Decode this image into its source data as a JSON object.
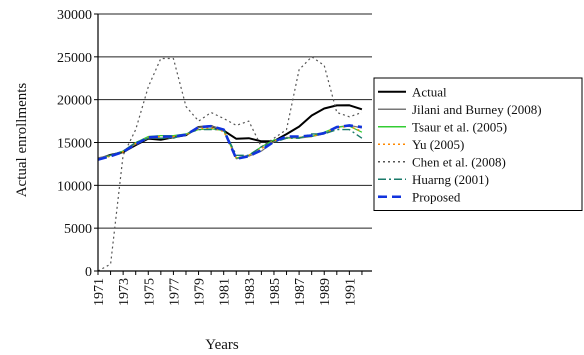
{
  "chart_data": {
    "type": "line",
    "title": "",
    "xlabel": "Years",
    "ylabel": "Actual enrollments",
    "xlim": [
      1971,
      1992.8
    ],
    "ylim": [
      0,
      30000
    ],
    "yticks": [
      0,
      5000,
      10000,
      15000,
      20000,
      25000,
      30000
    ],
    "xtick_labels": [
      "1971",
      "1973",
      "1975",
      "1977",
      "1979",
      "1981",
      "1983",
      "1985",
      "1987",
      "1989",
      "1991"
    ],
    "grid": "horizontal",
    "legend_placement": "right",
    "series": [
      {
        "name": "Actual",
        "color": "#000000",
        "style": "solid",
        "width": 2,
        "x": [
          1971,
          1972,
          1973,
          1974,
          1975,
          1976,
          1977,
          1978,
          1979,
          1980,
          1981,
          1982,
          1983,
          1984,
          1985,
          1986,
          1987,
          1988,
          1989,
          1990,
          1991,
          1992
        ],
        "y": [
          13055,
          13563,
          13867,
          14696,
          15460,
          15311,
          15603,
          15861,
          16807,
          16919,
          16388,
          15433,
          15497,
          15145,
          15163,
          15984,
          16859,
          18150,
          18970,
          19328,
          19337,
          18876
        ]
      },
      {
        "name": "Jilani and Burney (2008)",
        "color": "#777777",
        "style": "solid",
        "width": 1.2,
        "x": [
          1971,
          1972,
          1973,
          1974,
          1975,
          1976,
          1977,
          1978,
          1979,
          1980,
          1981,
          1982,
          1983,
          1984,
          1985,
          1986,
          1987,
          1988,
          1989,
          1990,
          1991,
          1992
        ],
        "y": [
          13200,
          13500,
          14000,
          14800,
          15500,
          15500,
          15600,
          15900,
          16800,
          16900,
          16500,
          13100,
          13400,
          14000,
          15100,
          15600,
          15500,
          15700,
          16000,
          16800,
          17000,
          16700
        ]
      },
      {
        "name": "Tsaur et al. (2005)",
        "color": "#33cc33",
        "style": "solid",
        "width": 1.2,
        "x": [
          1971,
          1972,
          1973,
          1974,
          1975,
          1976,
          1977,
          1978,
          1979,
          1980,
          1981,
          1982,
          1983,
          1984,
          1985,
          1986,
          1987,
          1988,
          1989,
          1990,
          1991,
          1992
        ],
        "y": [
          13000,
          13500,
          14000,
          15000,
          15700,
          15800,
          15800,
          16000,
          16500,
          16600,
          16400,
          13200,
          13500,
          14500,
          15300,
          15500,
          15600,
          15700,
          16200,
          16800,
          16900,
          16200
        ]
      },
      {
        "name": "Yu (2005)",
        "color": "#ff8800",
        "style": "dot",
        "width": 1.4,
        "x": [
          1971,
          1972,
          1973,
          1974,
          1975,
          1976,
          1977,
          1978,
          1979,
          1980,
          1981,
          1982,
          1983,
          1984,
          1985,
          1986,
          1987,
          1988,
          1989,
          1990,
          1991,
          1992
        ],
        "y": [
          13000,
          13400,
          13900,
          14900,
          15600,
          15700,
          15700,
          15900,
          16600,
          16700,
          16300,
          13200,
          13500,
          14300,
          15200,
          15500,
          15600,
          15700,
          16100,
          16700,
          16900,
          16300
        ]
      },
      {
        "name": "Chen et al. (2008)",
        "color": "#555555",
        "style": "dot",
        "width": 1.2,
        "x": [
          1971,
          1972,
          1973,
          1974,
          1975,
          1976,
          1977,
          1978,
          1979,
          1980,
          1981,
          1982,
          1983,
          1984,
          1985,
          1986,
          1987,
          1988,
          1989,
          1990,
          1991,
          1992
        ],
        "y": [
          0,
          800,
          13500,
          16500,
          21500,
          24800,
          24800,
          19200,
          17500,
          18500,
          17800,
          17000,
          17500,
          14500,
          15500,
          16500,
          23500,
          25000,
          24000,
          18500,
          18000,
          18500
        ]
      },
      {
        "name": "Huarng (2001)",
        "color": "#1a7a6a",
        "style": "dashdot",
        "width": 1.4,
        "x": [
          1971,
          1972,
          1973,
          1974,
          1975,
          1976,
          1977,
          1978,
          1979,
          1980,
          1981,
          1982,
          1983,
          1984,
          1985,
          1986,
          1987,
          1988,
          1989,
          1990,
          1991,
          1992
        ],
        "y": [
          13000,
          13500,
          14000,
          15000,
          15500,
          15500,
          15500,
          16000,
          16500,
          16500,
          16500,
          13500,
          13500,
          14500,
          15000,
          15500,
          15500,
          16000,
          16000,
          16500,
          16500,
          15500
        ]
      },
      {
        "name": "Proposed",
        "color": "#1133dd",
        "style": "dash",
        "width": 2.6,
        "x": [
          1971,
          1972,
          1973,
          1974,
          1975,
          1976,
          1977,
          1978,
          1979,
          1980,
          1981,
          1982,
          1983,
          1984,
          1985,
          1986,
          1987,
          1988,
          1989,
          1990,
          1991,
          1992
        ],
        "y": [
          13000,
          13400,
          13900,
          14800,
          15600,
          15700,
          15700,
          15900,
          16800,
          16900,
          16500,
          13100,
          13400,
          14100,
          15100,
          15700,
          15700,
          15800,
          16100,
          16800,
          17000,
          16800
        ]
      }
    ]
  }
}
